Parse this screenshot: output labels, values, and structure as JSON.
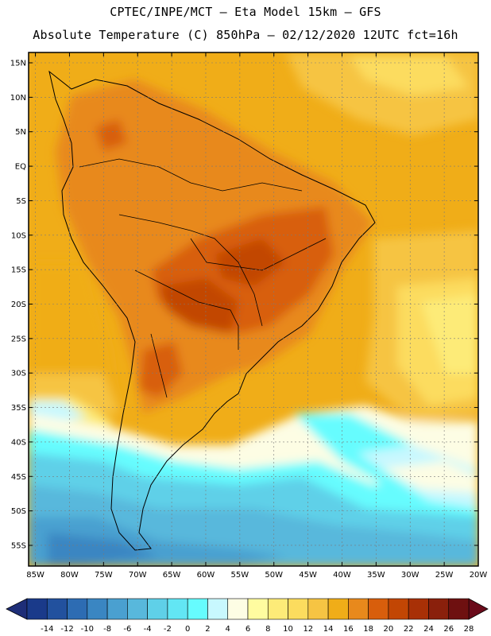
{
  "header": {
    "line1": "CPTEC/INPE/MCT –  Eta Model 15km – GFS",
    "line2": "Absolute Temperature (C) 850hPa – 02/12/2020 12UTC fct=16h"
  },
  "axes": {
    "lat_labels": [
      "15N",
      "10N",
      "5N",
      "EQ",
      "5S",
      "10S",
      "15S",
      "20S",
      "25S",
      "30S",
      "35S",
      "40S",
      "45S",
      "50S",
      "55S"
    ],
    "lon_labels": [
      "85W",
      "80W",
      "75W",
      "70W",
      "65W",
      "60W",
      "55W",
      "50W",
      "45W",
      "40W",
      "35W",
      "30W",
      "25W",
      "20W"
    ]
  },
  "colorbar": {
    "ticks": [
      "-14",
      "-12",
      "-10",
      "-8",
      "-6",
      "-4",
      "-2",
      "0",
      "2",
      "4",
      "6",
      "8",
      "10",
      "12",
      "14",
      "16",
      "18",
      "20",
      "22",
      "24",
      "26",
      "28"
    ],
    "colors": [
      "#1a3a8a",
      "#22519e",
      "#2d6cb3",
      "#3a86c2",
      "#4aa0d0",
      "#58b8dc",
      "#5fd0e8",
      "#62e6f4",
      "#66fcfe",
      "#c8f8fe",
      "#fdfde4",
      "#fffca0",
      "#fdeb78",
      "#fcdc5e",
      "#f6c443",
      "#f0ad18",
      "#e8891c",
      "#d85e0c",
      "#c24604",
      "#a83006",
      "#8a200c",
      "#6e1010"
    ],
    "low_color": "#1e2e78",
    "high_color": "#6a0a1a"
  }
}
